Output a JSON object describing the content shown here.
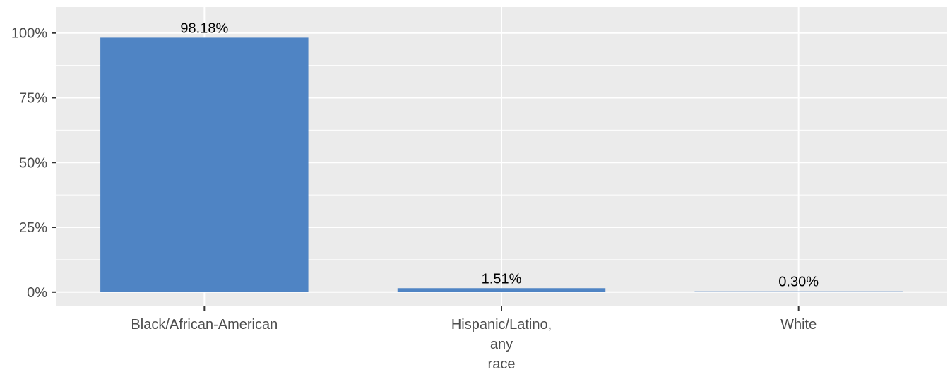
{
  "chart_data": {
    "type": "bar",
    "categories": [
      "Black/African-American",
      "Hispanic/Latino, any race",
      "White"
    ],
    "category_label_lines": [
      [
        "Black/African-American"
      ],
      [
        "Hispanic/Latino,",
        "any",
        "race"
      ],
      [
        "White"
      ]
    ],
    "values": [
      98.18,
      1.51,
      0.3
    ],
    "data_labels": [
      "98.18%",
      "1.51%",
      "0.30%"
    ],
    "yticks": [
      0,
      25,
      50,
      75,
      100
    ],
    "ytick_labels": [
      "0%",
      "25%",
      "50%",
      "75%",
      "100%"
    ],
    "ylim": [
      -5.5,
      110
    ],
    "title": "",
    "xlabel": "",
    "ylabel": "",
    "grid": true,
    "legend": "none",
    "colors": {
      "bar": "#4f84c4",
      "panel": "#ebebeb",
      "grid": "#ffffff",
      "tick": "#333333"
    }
  }
}
